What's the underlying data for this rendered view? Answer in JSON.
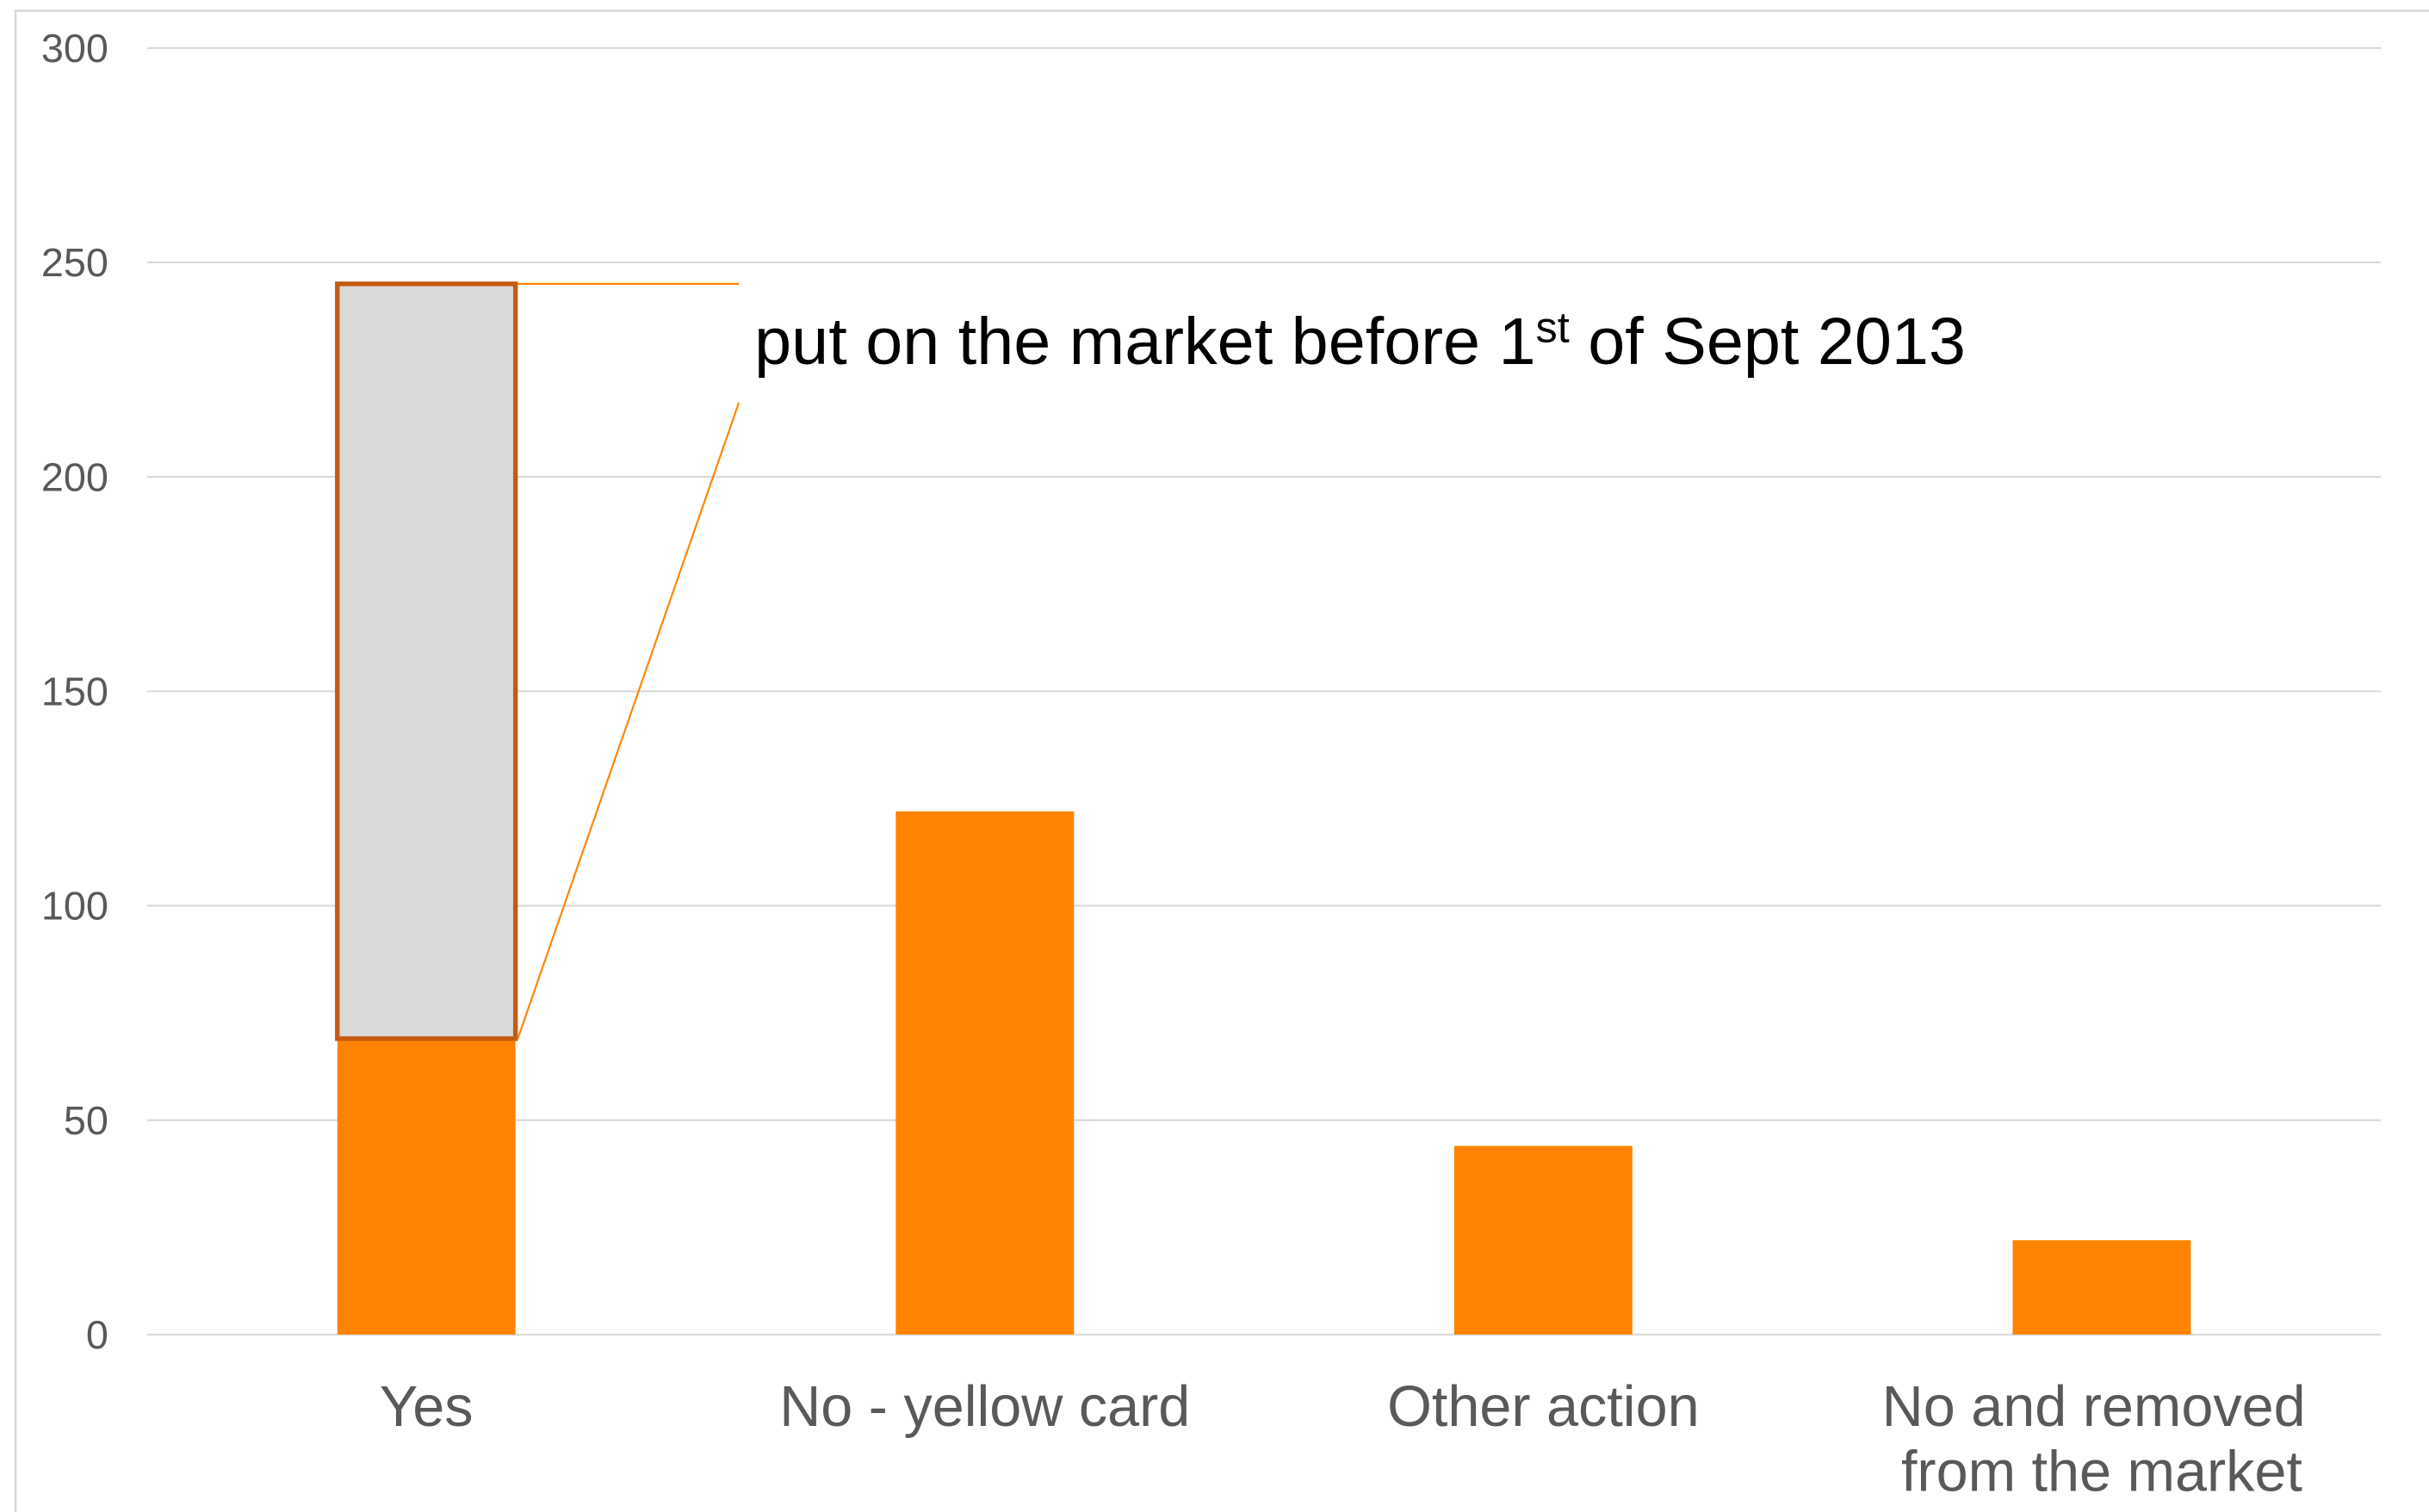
{
  "chart_data": {
    "type": "stacked_bar",
    "categories": [
      "Yes",
      "No - yellow card",
      "Other action",
      "No and removed from the market"
    ],
    "series": [
      {
        "color": "#ff8300",
        "values": [
          69,
          122,
          44,
          22
        ]
      },
      {
        "color": "#d9d9d9",
        "outline": "#c55a11",
        "values": [
          176,
          null,
          null,
          null
        ]
      }
    ],
    "ylim": [
      0,
      300
    ],
    "yticks": [
      0,
      50,
      100,
      150,
      200,
      250,
      300
    ],
    "grid": true,
    "annotation": {
      "text": "put on the market before 1",
      "superscript": "st",
      "after": " of Sept 2013"
    }
  }
}
